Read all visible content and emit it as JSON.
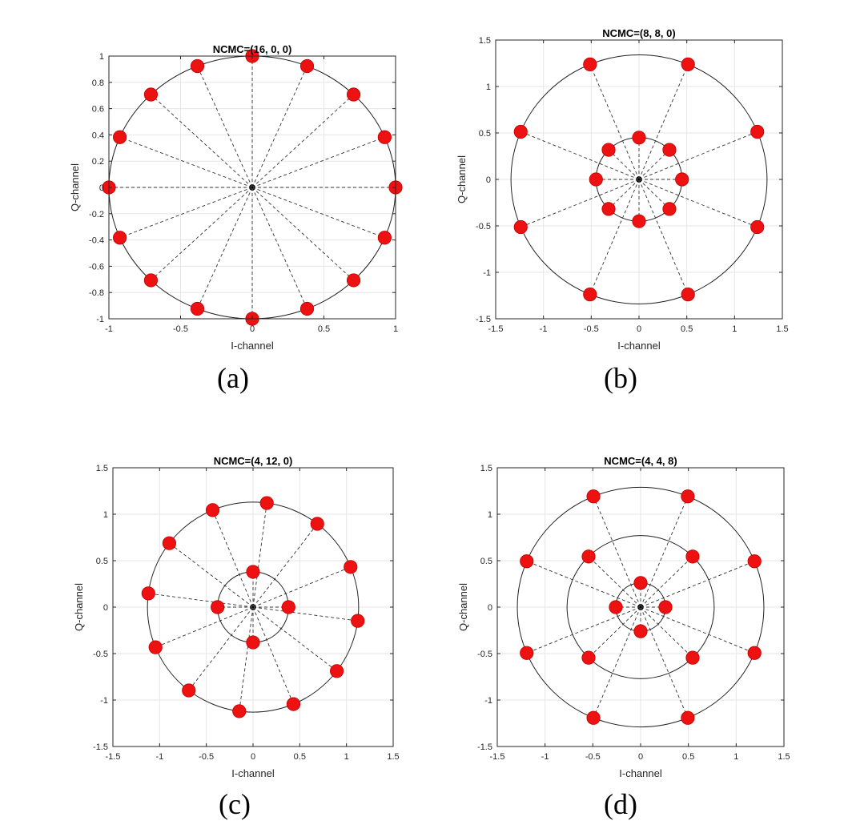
{
  "colors": {
    "marker": "#ee1111",
    "marker_edge": "#c40000",
    "ring": "#222222",
    "spoke": "#333333",
    "grid": "#e6e6e6",
    "axis": "#262626"
  },
  "chart_data": [
    {
      "type": "scatter",
      "caption": "(a)",
      "title": "NCMC=(16, 0, 0)",
      "xlabel": "I-channel",
      "ylabel": "Q-channel",
      "xlim": [
        -1,
        1
      ],
      "ylim": [
        -1,
        1
      ],
      "xticks": [
        -1,
        -0.5,
        0,
        0.5,
        1
      ],
      "xtick_labels": [
        "-1",
        "-0.5",
        "0",
        "0.5",
        "1"
      ],
      "yticks": [
        -1,
        -0.8,
        -0.6,
        -0.4,
        -0.2,
        0,
        0.2,
        0.4,
        0.6,
        0.8,
        1
      ],
      "ytick_labels": [
        "-1",
        "-0.8",
        "-0.6",
        "-0.4",
        "-0.2",
        "0",
        "0.2",
        "0.4",
        "0.6",
        "0.8",
        "1"
      ],
      "grid": true,
      "rings": [
        {
          "radius": 1,
          "points": 16,
          "phase_deg": 0
        }
      ]
    },
    {
      "type": "scatter",
      "caption": "(b)",
      "title": "NCMC=(8, 8, 0)",
      "xlabel": "I-channel",
      "ylabel": "Q-channel",
      "xlim": [
        -1.5,
        1.5
      ],
      "ylim": [
        -1.5,
        1.5
      ],
      "xticks": [
        -1.5,
        -1,
        -0.5,
        0,
        0.5,
        1,
        1.5
      ],
      "xtick_labels": [
        "-1.5",
        "-1",
        "-0.5",
        "0",
        "0.5",
        "1",
        "1.5"
      ],
      "yticks": [
        -1.5,
        -1,
        -0.5,
        0,
        0.5,
        1,
        1.5
      ],
      "ytick_labels": [
        "-1.5",
        "-1",
        "-0.5",
        "0",
        "0.5",
        "1",
        "1.5"
      ],
      "grid": true,
      "rings": [
        {
          "radius": 0.45,
          "points": 8,
          "phase_deg": 0
        },
        {
          "radius": 1.34,
          "points": 8,
          "phase_deg": 22.5
        }
      ]
    },
    {
      "type": "scatter",
      "caption": "(c)",
      "title": "NCMC=(4, 12, 0)",
      "xlabel": "I-channel",
      "ylabel": "Q-channel",
      "xlim": [
        -1.5,
        1.5
      ],
      "ylim": [
        -1.5,
        1.5
      ],
      "xticks": [
        -1.5,
        -1,
        -0.5,
        0,
        0.5,
        1,
        1.5
      ],
      "xtick_labels": [
        "-1.5",
        "-1",
        "-0.5",
        "0",
        "0.5",
        "1",
        "1.5"
      ],
      "yticks": [
        -1.5,
        -1,
        -0.5,
        0,
        0.5,
        1,
        1.5
      ],
      "ytick_labels": [
        "-1.5",
        "-1",
        "-0.5",
        "0",
        "0.5",
        "1",
        "1.5"
      ],
      "grid": true,
      "rings": [
        {
          "radius": 0.38,
          "points": 4,
          "phase_deg": 0
        },
        {
          "radius": 1.13,
          "points": 12,
          "phase_deg": 22.5
        }
      ]
    },
    {
      "type": "scatter",
      "caption": "(d)",
      "title": "NCMC=(4, 4, 8)",
      "xlabel": "I-channel",
      "ylabel": "Q-channel",
      "xlim": [
        -1.5,
        1.5
      ],
      "ylim": [
        -1.5,
        1.5
      ],
      "xticks": [
        -1.5,
        -1,
        -0.5,
        0,
        0.5,
        1,
        1.5
      ],
      "xtick_labels": [
        "-1.5",
        "-1",
        "-0.5",
        "0",
        "0.5",
        "1",
        "1.5"
      ],
      "yticks": [
        -1.5,
        -1,
        -0.5,
        0,
        0.5,
        1,
        1.5
      ],
      "ytick_labels": [
        "-1.5",
        "-1",
        "-0.5",
        "0",
        "0.5",
        "1",
        "1.5"
      ],
      "grid": true,
      "rings": [
        {
          "radius": 0.26,
          "points": 4,
          "phase_deg": 0
        },
        {
          "radius": 0.77,
          "points": 4,
          "phase_deg": 45
        },
        {
          "radius": 1.29,
          "points": 8,
          "phase_deg": 22.5
        }
      ]
    }
  ]
}
